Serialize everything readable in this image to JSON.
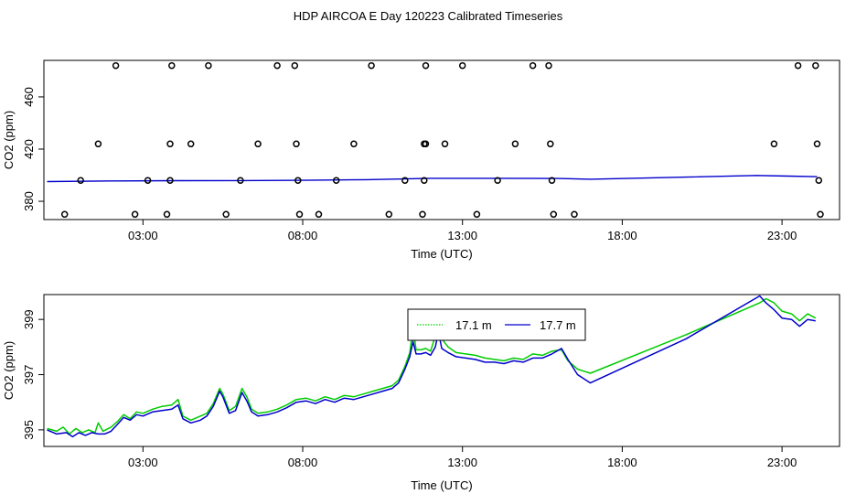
{
  "title": "HDP AIRCOA E  Day 120223  Calibrated Timeseries",
  "chart_data": [
    {
      "type": "scatter",
      "title": "",
      "xlabel": "Time (UTC)",
      "ylabel": "CO2 (ppm)",
      "x_ticks": [
        "03:00",
        "08:00",
        "13:00",
        "18:00",
        "23:00"
      ],
      "x_tick_hours": [
        3,
        8,
        13,
        18,
        23
      ],
      "xlim_hours": [
        -0.1,
        24.8
      ],
      "y_ticks": [
        380,
        420,
        460
      ],
      "ylim": [
        366,
        488
      ],
      "grid": false,
      "point_color": "#000000",
      "line_color": "#0000cc",
      "points": [
        {
          "x": 2.15,
          "y": 484
        },
        {
          "x": 3.9,
          "y": 484
        },
        {
          "x": 5.05,
          "y": 484
        },
        {
          "x": 7.2,
          "y": 484
        },
        {
          "x": 7.75,
          "y": 484
        },
        {
          "x": 10.15,
          "y": 484
        },
        {
          "x": 11.85,
          "y": 484
        },
        {
          "x": 13.0,
          "y": 484
        },
        {
          "x": 15.2,
          "y": 484
        },
        {
          "x": 15.7,
          "y": 484
        },
        {
          "x": 23.5,
          "y": 484
        },
        {
          "x": 24.05,
          "y": 484
        },
        {
          "x": 1.6,
          "y": 424
        },
        {
          "x": 3.85,
          "y": 424
        },
        {
          "x": 4.5,
          "y": 424
        },
        {
          "x": 6.6,
          "y": 424
        },
        {
          "x": 7.8,
          "y": 424
        },
        {
          "x": 9.6,
          "y": 424
        },
        {
          "x": 11.8,
          "y": 424
        },
        {
          "x": 11.85,
          "y": 424
        },
        {
          "x": 12.45,
          "y": 424
        },
        {
          "x": 14.65,
          "y": 424
        },
        {
          "x": 15.75,
          "y": 424
        },
        {
          "x": 22.75,
          "y": 424
        },
        {
          "x": 24.1,
          "y": 424
        },
        {
          "x": 1.05,
          "y": 396
        },
        {
          "x": 3.15,
          "y": 396
        },
        {
          "x": 3.85,
          "y": 396
        },
        {
          "x": 6.05,
          "y": 396
        },
        {
          "x": 7.85,
          "y": 396
        },
        {
          "x": 9.05,
          "y": 396
        },
        {
          "x": 11.2,
          "y": 396
        },
        {
          "x": 11.8,
          "y": 396
        },
        {
          "x": 14.1,
          "y": 396
        },
        {
          "x": 15.8,
          "y": 396
        },
        {
          "x": 24.15,
          "y": 396
        },
        {
          "x": 0.55,
          "y": 370
        },
        {
          "x": 2.75,
          "y": 370
        },
        {
          "x": 3.75,
          "y": 370
        },
        {
          "x": 5.6,
          "y": 370
        },
        {
          "x": 7.9,
          "y": 370
        },
        {
          "x": 8.5,
          "y": 370
        },
        {
          "x": 10.7,
          "y": 370
        },
        {
          "x": 11.75,
          "y": 370
        },
        {
          "x": 13.45,
          "y": 370
        },
        {
          "x": 15.85,
          "y": 370
        },
        {
          "x": 16.5,
          "y": 370
        },
        {
          "x": 24.2,
          "y": 370
        }
      ],
      "trend": [
        {
          "x": 0.0,
          "y": 395.1
        },
        {
          "x": 2.0,
          "y": 395.6
        },
        {
          "x": 4.0,
          "y": 395.8
        },
        {
          "x": 6.0,
          "y": 395.9
        },
        {
          "x": 8.0,
          "y": 396.1
        },
        {
          "x": 10.0,
          "y": 396.6
        },
        {
          "x": 12.0,
          "y": 397.6
        },
        {
          "x": 14.0,
          "y": 397.6
        },
        {
          "x": 16.0,
          "y": 397.5
        },
        {
          "x": 17.0,
          "y": 396.9
        },
        {
          "x": 20.0,
          "y": 398.5
        },
        {
          "x": 22.2,
          "y": 399.8
        },
        {
          "x": 23.2,
          "y": 399.3
        },
        {
          "x": 24.1,
          "y": 398.9
        }
      ]
    },
    {
      "type": "line",
      "title": "",
      "xlabel": "Time (UTC)",
      "ylabel": "CO2 (ppm)",
      "x_ticks": [
        "03:00",
        "08:00",
        "13:00",
        "18:00",
        "23:00"
      ],
      "x_tick_hours": [
        3,
        8,
        13,
        18,
        23
      ],
      "xlim_hours": [
        -0.1,
        24.8
      ],
      "y_ticks": [
        395,
        397,
        399
      ],
      "ylim": [
        394.4,
        399.9
      ],
      "grid": false,
      "legend_position": "top-center",
      "series": [
        {
          "name": "17.1 m",
          "color": "#00cc00",
          "style": "dotted",
          "points": [
            {
              "x": 0.0,
              "y": 395.05
            },
            {
              "x": 0.3,
              "y": 394.95
            },
            {
              "x": 0.5,
              "y": 395.1
            },
            {
              "x": 0.7,
              "y": 394.85
            },
            {
              "x": 0.9,
              "y": 395.05
            },
            {
              "x": 1.1,
              "y": 394.9
            },
            {
              "x": 1.3,
              "y": 395.0
            },
            {
              "x": 1.5,
              "y": 394.9
            },
            {
              "x": 1.6,
              "y": 395.25
            },
            {
              "x": 1.75,
              "y": 394.95
            },
            {
              "x": 2.0,
              "y": 395.1
            },
            {
              "x": 2.2,
              "y": 395.3
            },
            {
              "x": 2.4,
              "y": 395.55
            },
            {
              "x": 2.6,
              "y": 395.4
            },
            {
              "x": 2.8,
              "y": 395.65
            },
            {
              "x": 3.0,
              "y": 395.6
            },
            {
              "x": 3.3,
              "y": 395.75
            },
            {
              "x": 3.6,
              "y": 395.85
            },
            {
              "x": 3.9,
              "y": 395.9
            },
            {
              "x": 4.1,
              "y": 396.1
            },
            {
              "x": 4.25,
              "y": 395.5
            },
            {
              "x": 4.5,
              "y": 395.35
            },
            {
              "x": 4.8,
              "y": 395.5
            },
            {
              "x": 5.0,
              "y": 395.6
            },
            {
              "x": 5.2,
              "y": 395.95
            },
            {
              "x": 5.4,
              "y": 396.5
            },
            {
              "x": 5.5,
              "y": 396.3
            },
            {
              "x": 5.7,
              "y": 395.7
            },
            {
              "x": 5.9,
              "y": 395.85
            },
            {
              "x": 6.1,
              "y": 396.5
            },
            {
              "x": 6.25,
              "y": 396.2
            },
            {
              "x": 6.4,
              "y": 395.75
            },
            {
              "x": 6.6,
              "y": 395.6
            },
            {
              "x": 6.9,
              "y": 395.65
            },
            {
              "x": 7.2,
              "y": 395.75
            },
            {
              "x": 7.5,
              "y": 395.9
            },
            {
              "x": 7.8,
              "y": 396.1
            },
            {
              "x": 8.1,
              "y": 396.15
            },
            {
              "x": 8.4,
              "y": 396.05
            },
            {
              "x": 8.7,
              "y": 396.2
            },
            {
              "x": 9.0,
              "y": 396.1
            },
            {
              "x": 9.3,
              "y": 396.25
            },
            {
              "x": 9.6,
              "y": 396.2
            },
            {
              "x": 9.9,
              "y": 396.3
            },
            {
              "x": 10.2,
              "y": 396.4
            },
            {
              "x": 10.5,
              "y": 396.5
            },
            {
              "x": 10.8,
              "y": 396.6
            },
            {
              "x": 11.0,
              "y": 396.8
            },
            {
              "x": 11.2,
              "y": 397.3
            },
            {
              "x": 11.35,
              "y": 397.8
            },
            {
              "x": 11.45,
              "y": 398.7
            },
            {
              "x": 11.55,
              "y": 397.9
            },
            {
              "x": 11.7,
              "y": 397.9
            },
            {
              "x": 11.85,
              "y": 397.95
            },
            {
              "x": 12.0,
              "y": 397.85
            },
            {
              "x": 12.15,
              "y": 398.4
            },
            {
              "x": 12.25,
              "y": 399.35
            },
            {
              "x": 12.35,
              "y": 398.3
            },
            {
              "x": 12.55,
              "y": 398.0
            },
            {
              "x": 12.8,
              "y": 397.8
            },
            {
              "x": 13.1,
              "y": 397.75
            },
            {
              "x": 13.4,
              "y": 397.7
            },
            {
              "x": 13.7,
              "y": 397.6
            },
            {
              "x": 14.0,
              "y": 397.55
            },
            {
              "x": 14.3,
              "y": 397.5
            },
            {
              "x": 14.6,
              "y": 397.6
            },
            {
              "x": 14.9,
              "y": 397.55
            },
            {
              "x": 15.2,
              "y": 397.75
            },
            {
              "x": 15.5,
              "y": 397.7
            },
            {
              "x": 15.8,
              "y": 397.85
            },
            {
              "x": 16.1,
              "y": 397.9
            },
            {
              "x": 16.3,
              "y": 397.5
            },
            {
              "x": 16.6,
              "y": 397.2
            },
            {
              "x": 17.0,
              "y": 397.05
            },
            {
              "x": 20.0,
              "y": 398.45
            },
            {
              "x": 22.3,
              "y": 399.6
            },
            {
              "x": 22.5,
              "y": 399.75
            },
            {
              "x": 22.75,
              "y": 399.6
            },
            {
              "x": 23.0,
              "y": 399.3
            },
            {
              "x": 23.3,
              "y": 399.2
            },
            {
              "x": 23.55,
              "y": 398.95
            },
            {
              "x": 23.8,
              "y": 399.2
            },
            {
              "x": 24.05,
              "y": 399.05
            }
          ]
        },
        {
          "name": "17.7 m",
          "color": "#0000cc",
          "style": "solid",
          "points": [
            {
              "x": 0.0,
              "y": 395.0
            },
            {
              "x": 0.3,
              "y": 394.85
            },
            {
              "x": 0.6,
              "y": 394.9
            },
            {
              "x": 0.8,
              "y": 394.75
            },
            {
              "x": 1.0,
              "y": 394.9
            },
            {
              "x": 1.2,
              "y": 394.8
            },
            {
              "x": 1.4,
              "y": 394.9
            },
            {
              "x": 1.6,
              "y": 394.85
            },
            {
              "x": 1.8,
              "y": 394.85
            },
            {
              "x": 2.0,
              "y": 394.95
            },
            {
              "x": 2.2,
              "y": 395.2
            },
            {
              "x": 2.4,
              "y": 395.45
            },
            {
              "x": 2.6,
              "y": 395.35
            },
            {
              "x": 2.8,
              "y": 395.55
            },
            {
              "x": 3.0,
              "y": 395.5
            },
            {
              "x": 3.3,
              "y": 395.65
            },
            {
              "x": 3.6,
              "y": 395.7
            },
            {
              "x": 3.9,
              "y": 395.75
            },
            {
              "x": 4.1,
              "y": 395.9
            },
            {
              "x": 4.25,
              "y": 395.4
            },
            {
              "x": 4.5,
              "y": 395.25
            },
            {
              "x": 4.8,
              "y": 395.35
            },
            {
              "x": 5.0,
              "y": 395.5
            },
            {
              "x": 5.2,
              "y": 395.85
            },
            {
              "x": 5.4,
              "y": 396.4
            },
            {
              "x": 5.5,
              "y": 396.2
            },
            {
              "x": 5.7,
              "y": 395.6
            },
            {
              "x": 5.9,
              "y": 395.7
            },
            {
              "x": 6.1,
              "y": 396.35
            },
            {
              "x": 6.25,
              "y": 396.05
            },
            {
              "x": 6.4,
              "y": 395.65
            },
            {
              "x": 6.6,
              "y": 395.5
            },
            {
              "x": 6.9,
              "y": 395.55
            },
            {
              "x": 7.2,
              "y": 395.65
            },
            {
              "x": 7.5,
              "y": 395.8
            },
            {
              "x": 7.8,
              "y": 396.0
            },
            {
              "x": 8.1,
              "y": 396.05
            },
            {
              "x": 8.4,
              "y": 395.95
            },
            {
              "x": 8.7,
              "y": 396.1
            },
            {
              "x": 9.0,
              "y": 396.0
            },
            {
              "x": 9.3,
              "y": 396.15
            },
            {
              "x": 9.6,
              "y": 396.1
            },
            {
              "x": 9.9,
              "y": 396.2
            },
            {
              "x": 10.2,
              "y": 396.3
            },
            {
              "x": 10.5,
              "y": 396.4
            },
            {
              "x": 10.8,
              "y": 396.5
            },
            {
              "x": 11.0,
              "y": 396.7
            },
            {
              "x": 11.2,
              "y": 397.2
            },
            {
              "x": 11.35,
              "y": 397.65
            },
            {
              "x": 11.45,
              "y": 398.2
            },
            {
              "x": 11.55,
              "y": 397.75
            },
            {
              "x": 11.7,
              "y": 397.75
            },
            {
              "x": 11.85,
              "y": 397.8
            },
            {
              "x": 12.0,
              "y": 397.7
            },
            {
              "x": 12.15,
              "y": 398.0
            },
            {
              "x": 12.25,
              "y": 398.55
            },
            {
              "x": 12.35,
              "y": 397.95
            },
            {
              "x": 12.55,
              "y": 397.8
            },
            {
              "x": 12.8,
              "y": 397.65
            },
            {
              "x": 13.1,
              "y": 397.6
            },
            {
              "x": 13.4,
              "y": 397.55
            },
            {
              "x": 13.7,
              "y": 397.45
            },
            {
              "x": 14.0,
              "y": 397.45
            },
            {
              "x": 14.3,
              "y": 397.4
            },
            {
              "x": 14.6,
              "y": 397.5
            },
            {
              "x": 14.9,
              "y": 397.45
            },
            {
              "x": 15.2,
              "y": 397.6
            },
            {
              "x": 15.5,
              "y": 397.6
            },
            {
              "x": 15.8,
              "y": 397.75
            },
            {
              "x": 16.1,
              "y": 397.95
            },
            {
              "x": 16.3,
              "y": 397.55
            },
            {
              "x": 16.6,
              "y": 397.0
            },
            {
              "x": 17.0,
              "y": 396.7
            },
            {
              "x": 20.0,
              "y": 398.3
            },
            {
              "x": 22.3,
              "y": 399.85
            },
            {
              "x": 22.5,
              "y": 399.6
            },
            {
              "x": 22.75,
              "y": 399.35
            },
            {
              "x": 23.0,
              "y": 399.05
            },
            {
              "x": 23.3,
              "y": 399.0
            },
            {
              "x": 23.55,
              "y": 398.75
            },
            {
              "x": 23.8,
              "y": 399.0
            },
            {
              "x": 24.05,
              "y": 398.95
            }
          ]
        }
      ]
    }
  ]
}
